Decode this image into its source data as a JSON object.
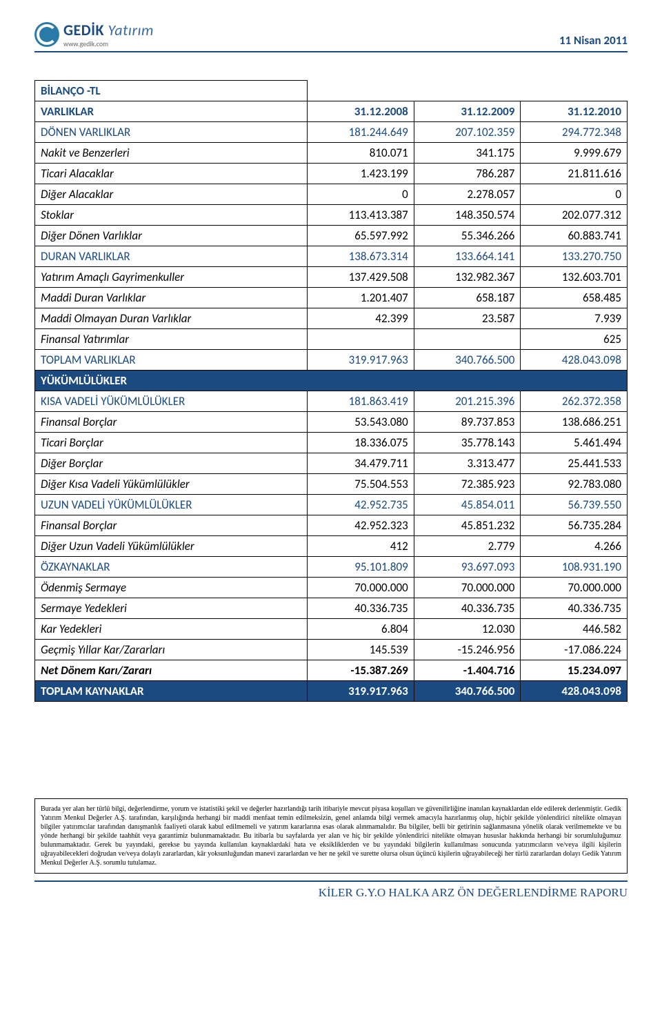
{
  "header": {
    "logo_brand": "GEDİK",
    "logo_suffix": "Yatırım",
    "logo_url": "www.gedik.com",
    "date": "11 Nisan 2011"
  },
  "table": {
    "title": "BİLANÇO -TL",
    "columns_header": {
      "label": "VARLIKLAR",
      "c1": "31.12.2008",
      "c2": "31.12.2009",
      "c3": "31.12.2010"
    },
    "rows": [
      {
        "style": "blue",
        "label": "DÖNEN VARLIKLAR",
        "c1": "181.244.649",
        "c2": "207.102.359",
        "c3": "294.772.348"
      },
      {
        "label": "Nakit ve Benzerleri",
        "c1": "810.071",
        "c2": "341.175",
        "c3": "9.999.679"
      },
      {
        "label": "Ticari Alacaklar",
        "c1": "1.423.199",
        "c2": "786.287",
        "c3": "21.811.616"
      },
      {
        "label": "Diğer Alacaklar",
        "c1": "0",
        "c2": "2.278.057",
        "c3": "0"
      },
      {
        "label": "Stoklar",
        "c1": "113.413.387",
        "c2": "148.350.574",
        "c3": "202.077.312"
      },
      {
        "label": "Diğer Dönen Varlıklar",
        "c1": "65.597.992",
        "c2": "55.346.266",
        "c3": "60.883.741"
      },
      {
        "style": "blue",
        "label": "DURAN VARLIKLAR",
        "c1": "138.673.314",
        "c2": "133.664.141",
        "c3": "133.270.750"
      },
      {
        "label": "Yatırım Amaçlı Gayrimenkuller",
        "c1": "137.429.508",
        "c2": "132.982.367",
        "c3": "132.603.701"
      },
      {
        "label": "Maddi Duran Varlıklar",
        "c1": "1.201.407",
        "c2": "658.187",
        "c3": "658.485"
      },
      {
        "label": "Maddi Olmayan Duran Varlıklar",
        "c1": "42.399",
        "c2": "23.587",
        "c3": "7.939"
      },
      {
        "label": "Finansal Yatırımlar",
        "c1": "",
        "c2": "",
        "c3": "625"
      },
      {
        "style": "blue",
        "label": "TOPLAM VARLIKLAR",
        "c1": "319.917.963",
        "c2": "340.766.500",
        "c3": "428.043.098"
      },
      {
        "style": "inverse section",
        "label": "YÜKÜMLÜLÜKLER",
        "c1": "",
        "c2": "",
        "c3": "",
        "colspan": true
      },
      {
        "style": "blue",
        "label": "KISA VADELİ YÜKÜMLÜLÜKLER",
        "c1": "181.863.419",
        "c2": "201.215.396",
        "c3": "262.372.358"
      },
      {
        "label": "Finansal Borçlar",
        "c1": "53.543.080",
        "c2": "89.737.853",
        "c3": "138.686.251"
      },
      {
        "label": "Ticari Borçlar",
        "c1": "18.336.075",
        "c2": "35.778.143",
        "c3": "5.461.494"
      },
      {
        "label": "Diğer Borçlar",
        "c1": "34.479.711",
        "c2": "3.313.477",
        "c3": "25.441.533"
      },
      {
        "label": "Diğer Kısa Vadeli Yükümlülükler",
        "c1": "75.504.553",
        "c2": "72.385.923",
        "c3": "92.783.080"
      },
      {
        "style": "blue",
        "label": "UZUN VADELİ YÜKÜMLÜLÜKLER",
        "c1": "42.952.735",
        "c2": "45.854.011",
        "c3": "56.739.550"
      },
      {
        "label": "Finansal Borçlar",
        "c1": "42.952.323",
        "c2": "45.851.232",
        "c3": "56.735.284"
      },
      {
        "label": "Diğer Uzun Vadeli Yükümlülükler",
        "c1": "412",
        "c2": "2.779",
        "c3": "4.266"
      },
      {
        "style": "blue",
        "label": "ÖZKAYNAKLAR",
        "c1": "95.101.809",
        "c2": "93.697.093",
        "c3": "108.931.190"
      },
      {
        "label": "Ödenmiş Sermaye",
        "c1": "70.000.000",
        "c2": "70.000.000",
        "c3": "70.000.000"
      },
      {
        "label": "Sermaye Yedekleri",
        "c1": "40.336.735",
        "c2": "40.336.735",
        "c3": "40.336.735"
      },
      {
        "label": "Kar Yedekleri",
        "c1": "6.804",
        "c2": "12.030",
        "c3": "446.582"
      },
      {
        "label": "Geçmiş Yıllar Kar/Zararları",
        "c1": "145.539",
        "c2": "-15.246.956",
        "c3": "-17.086.224"
      },
      {
        "style": "bold",
        "label": "Net Dönem Karı/Zararı",
        "c1": "-15.387.269",
        "c2": "-1.404.716",
        "c3": "15.234.097"
      },
      {
        "style": "inverse",
        "label": "TOPLAM KAYNAKLAR",
        "c1": "319.917.963",
        "c2": "340.766.500",
        "c3": "428.043.098"
      }
    ]
  },
  "disclaimer": "Burada yer alan her türlü bilgi, değerlendirme, yorum ve istatistiki şekil ve değerler hazırlandığı tarih itibariyle mevcut piyasa koşulları ve güvenilirliğine inanılan kaynaklardan elde edilerek derlenmiştir. Gedik Yatırım Menkul Değerler A.Ş. tarafından, karşılığında herhangi bir maddi menfaat temin edilmeksizin, genel anlamda bilgi vermek amacıyla hazırlanmış olup, hiçbir şekilde yönlendirici nitelikte olmayan bilgiler yatırımcılar tarafından danışmanlık faaliyeti olarak kabul edilmemeli ve yatırım kararlarına esas olarak alınmamalıdır. Bu bilgiler, belli bir getirinin sağlanmasına yönelik olarak verilmemekte ve bu yönde herhangi bir şekilde taahhüt veya garantimiz bulunmamaktadır. Bu itibarla bu sayfalarda yer alan ve hiç bir şekilde yönlendirici nitelikte olmayan hususlar hakkında herhangi bir sorumluluğumuz bulunmamaktadır. Gerek bu yayındaki, gerekse bu yayında kullanılan kaynaklardaki hata ve eksikliklerden ve bu yayındaki bilgilerin kullanılması sonucunda yatırımcıların ve/veya ilgili kişilerin uğrayabilecekleri doğrudan ve/veya dolaylı zararlardan, kâr yoksunluğundan manevi zararlardan ve her ne şekil ve surette olursa olsun üçüncü kişilerin uğrayabileceği her türlü zararlardan dolayı Gedik Yatırım Menkul Değerler A.Ş. sorumlu tutulamaz.",
  "footer": "KİLER G.Y.O HALKA ARZ ÖN DEĞERLENDİRME RAPORU"
}
